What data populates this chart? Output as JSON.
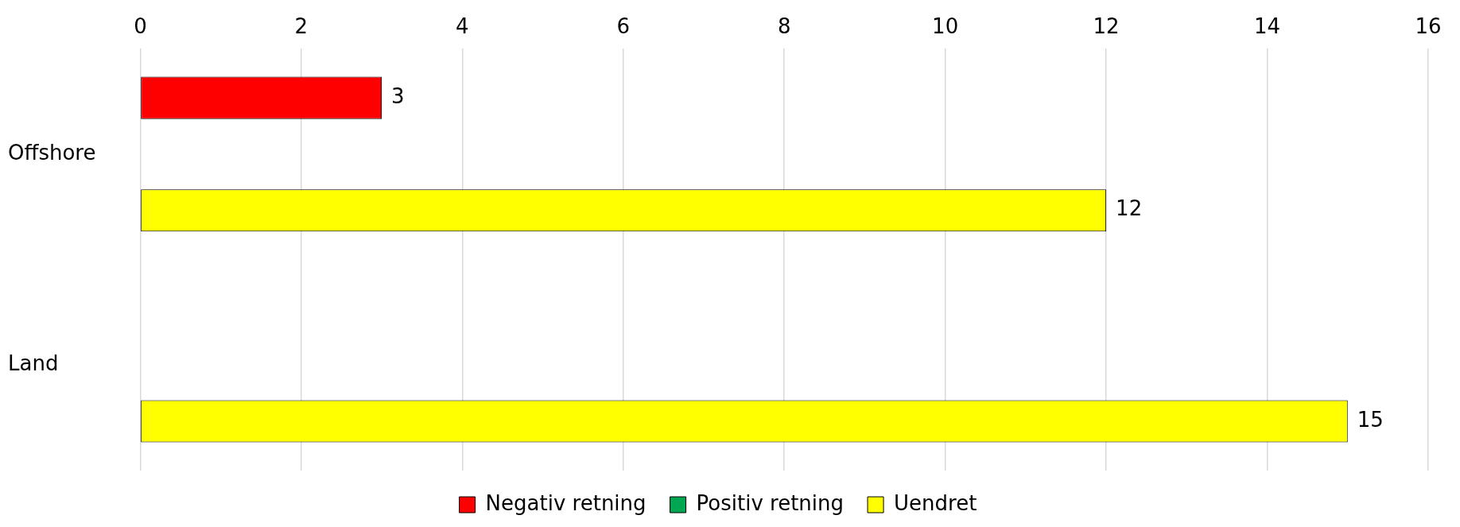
{
  "chart_data": {
    "type": "bar",
    "orientation": "horizontal",
    "categories": [
      "Offshore",
      "Land"
    ],
    "series": [
      {
        "name": "Negativ retning",
        "color": "#ff0000",
        "values": [
          3,
          null
        ]
      },
      {
        "name": "Positiv retning",
        "color": "#00a651",
        "values": [
          null,
          null
        ]
      },
      {
        "name": "Uendret",
        "color": "#ffff00",
        "values": [
          12,
          15
        ]
      }
    ],
    "xlim": [
      0,
      16
    ],
    "xticks": [
      0,
      2,
      4,
      6,
      8,
      10,
      12,
      14,
      16
    ],
    "grid": "x",
    "legend": "bottom",
    "data_labels": true
  }
}
